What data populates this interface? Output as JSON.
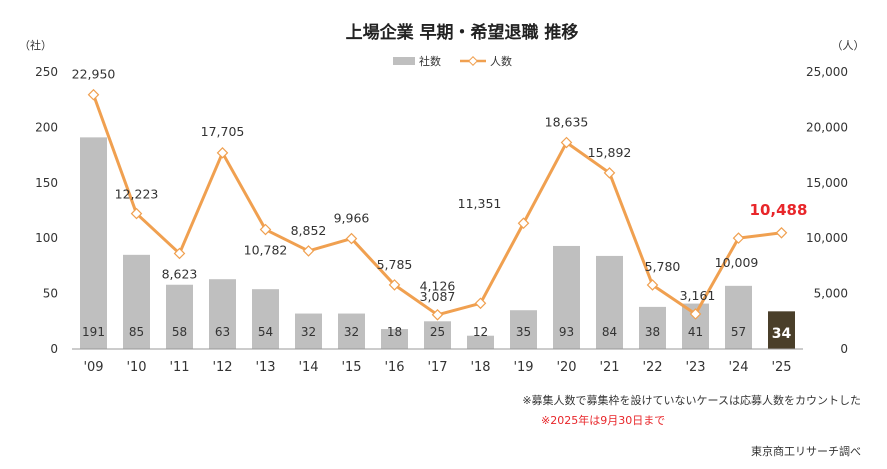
{
  "chart_data": {
    "type": "bar+line",
    "title": "上場企業 早期・希望退職 推移",
    "y_left_unit": "（社）",
    "y_right_unit": "（人）",
    "y_left_ticks": [
      "0",
      "50",
      "100",
      "150",
      "200",
      "250"
    ],
    "y_right_ticks": [
      "0",
      "5,000",
      "10,000",
      "15,000",
      "20,000",
      "25,000"
    ],
    "ylim_left": [
      0,
      250
    ],
    "ylim_right": [
      0,
      25000
    ],
    "categories": [
      "'09",
      "'10",
      "'11",
      "'12",
      "'13",
      "'14",
      "'15",
      "'16",
      "'17",
      "'18",
      "'19",
      "'20",
      "'21",
      "'22",
      "'23",
      "'24",
      "'25"
    ],
    "series": [
      {
        "name": "社数",
        "type": "bar",
        "axis": "left",
        "color": "#bfbfbf",
        "highlight_color": "#4a3f2a",
        "values": [
          191,
          85,
          58,
          63,
          54,
          32,
          32,
          18,
          25,
          12,
          35,
          93,
          84,
          38,
          41,
          57,
          34
        ],
        "labels": [
          "191",
          "85",
          "58",
          "63",
          "54",
          "32",
          "32",
          "18",
          "25",
          "12",
          "35",
          "93",
          "84",
          "38",
          "41",
          "57",
          "34"
        ]
      },
      {
        "name": "人数",
        "type": "line",
        "axis": "right",
        "color": "#f0a050",
        "highlight_color": "#e8262a",
        "values": [
          22950,
          12223,
          8623,
          17705,
          10782,
          8852,
          9966,
          5785,
          3087,
          4126,
          11351,
          18635,
          15892,
          5780,
          3161,
          10009,
          10488
        ],
        "labels": [
          "22,950",
          "12,223",
          "8,623",
          "17,705",
          "10,782",
          "8,852",
          "9,966",
          "5,785",
          "3,087",
          "4,126",
          "11,351",
          "18,635",
          "15,892",
          "5,780",
          "3,161",
          "10,009",
          "10,488"
        ]
      }
    ],
    "legend": {
      "placement": "top-center"
    },
    "grid": false
  },
  "notes": {
    "note1": "※募集人数で募集枠を設けていないケースは応募人数をカウントした",
    "note2": "※2025年は9月30日まで",
    "note2_color": "#e8262a",
    "source": "東京商工リサーチ調べ"
  }
}
